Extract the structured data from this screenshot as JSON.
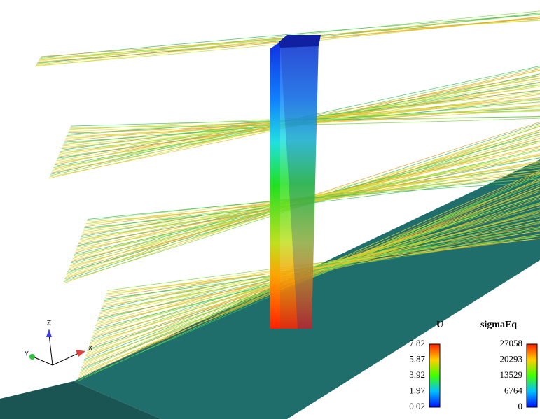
{
  "axes": {
    "z": "Z",
    "y": "Y",
    "x": "X"
  },
  "colorbars": [
    {
      "title": "U",
      "ticks": [
        7.82,
        5.87,
        3.92,
        1.97,
        0.02
      ]
    },
    {
      "title": "sigmaEq",
      "ticks": [
        27058,
        20293,
        13529,
        6764,
        0
      ]
    }
  ]
}
